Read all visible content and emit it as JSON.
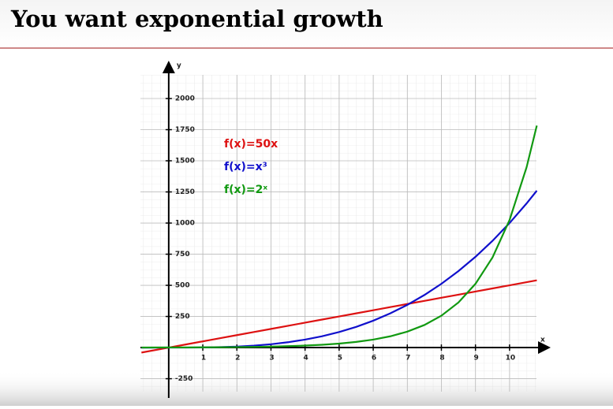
{
  "chart_data": {
    "type": "line",
    "title": "You want exponential growth",
    "x_label": "x",
    "y_label": "y",
    "x": [
      -0.8,
      0,
      0.5,
      1,
      1.5,
      2,
      2.5,
      3,
      3.5,
      4,
      4.5,
      5,
      5.5,
      6,
      6.5,
      7,
      7.5,
      8,
      8.5,
      9,
      9.5,
      10,
      10.5,
      10.8
    ],
    "series": [
      {
        "name": "f(x)=50x",
        "color": "#dd1111",
        "values": [
          -40,
          0,
          25,
          50,
          75,
          100,
          125,
          150,
          175,
          200,
          225,
          250,
          275,
          300,
          325,
          350,
          375,
          400,
          425,
          450,
          475,
          500,
          525,
          540
        ]
      },
      {
        "name": "f(x)=x³",
        "color": "#1010cc",
        "values": [
          -0.5,
          0,
          0.1,
          1,
          3.4,
          8,
          15.6,
          27,
          42.9,
          64,
          91.1,
          125,
          166.4,
          216,
          274.6,
          343,
          421.9,
          512,
          614.1,
          729,
          857.4,
          1000,
          1157.6,
          1259.7
        ]
      },
      {
        "name": "f(x)=2ˣ",
        "color": "#119911",
        "values": [
          0.57,
          1,
          1.41,
          2,
          2.83,
          4,
          5.66,
          8,
          11.3,
          16,
          22.6,
          32,
          45.3,
          64,
          90.5,
          128,
          181,
          256,
          362,
          512,
          724,
          1024,
          1448.2,
          1782.9
        ]
      }
    ],
    "xlim": [
      -0.83,
      10.79
    ],
    "ylim": [
      -354,
      2190
    ],
    "xticks": [
      1,
      2,
      3,
      4,
      5,
      6,
      7,
      8,
      9,
      10
    ],
    "yticks": [
      -250,
      250,
      500,
      750,
      1000,
      1250,
      1500,
      1750,
      2000
    ],
    "grid": true
  }
}
